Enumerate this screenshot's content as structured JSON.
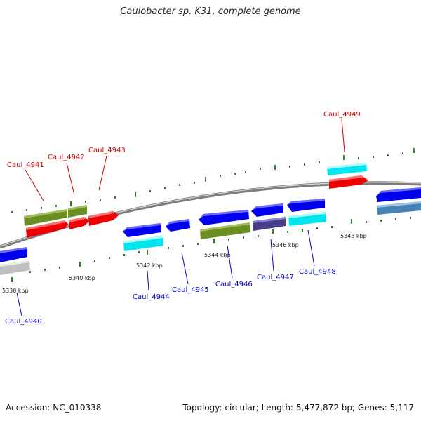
{
  "title": "Caulobacter sp. K31, complete genome",
  "footer": {
    "accession": "Accession: NC_010338",
    "topology": "Topology: circular; Length: 5,477,872 bp; Genes: 5,117"
  },
  "colors": {
    "forward_label": "#cc0000",
    "reverse_label": "#0000cc",
    "backbone": "#888888",
    "tick": "#2f7f2f"
  },
  "scale_labels": [
    "5338 kbp",
    "5340 kbp",
    "5342 kbp",
    "5344 kbp",
    "5346 kbp",
    "5348 kbp"
  ],
  "genes_forward": [
    {
      "label": "Caul_4941"
    },
    {
      "label": "Caul_4942"
    },
    {
      "label": "Caul_4943"
    },
    {
      "label": "Caul_4949"
    }
  ],
  "genes_reverse": [
    {
      "label": "Caul_4940"
    },
    {
      "label": "Caul_4944"
    },
    {
      "label": "Caul_4945"
    },
    {
      "label": "Caul_4946"
    },
    {
      "label": "Caul_4947"
    },
    {
      "label": "Caul_4948"
    }
  ]
}
